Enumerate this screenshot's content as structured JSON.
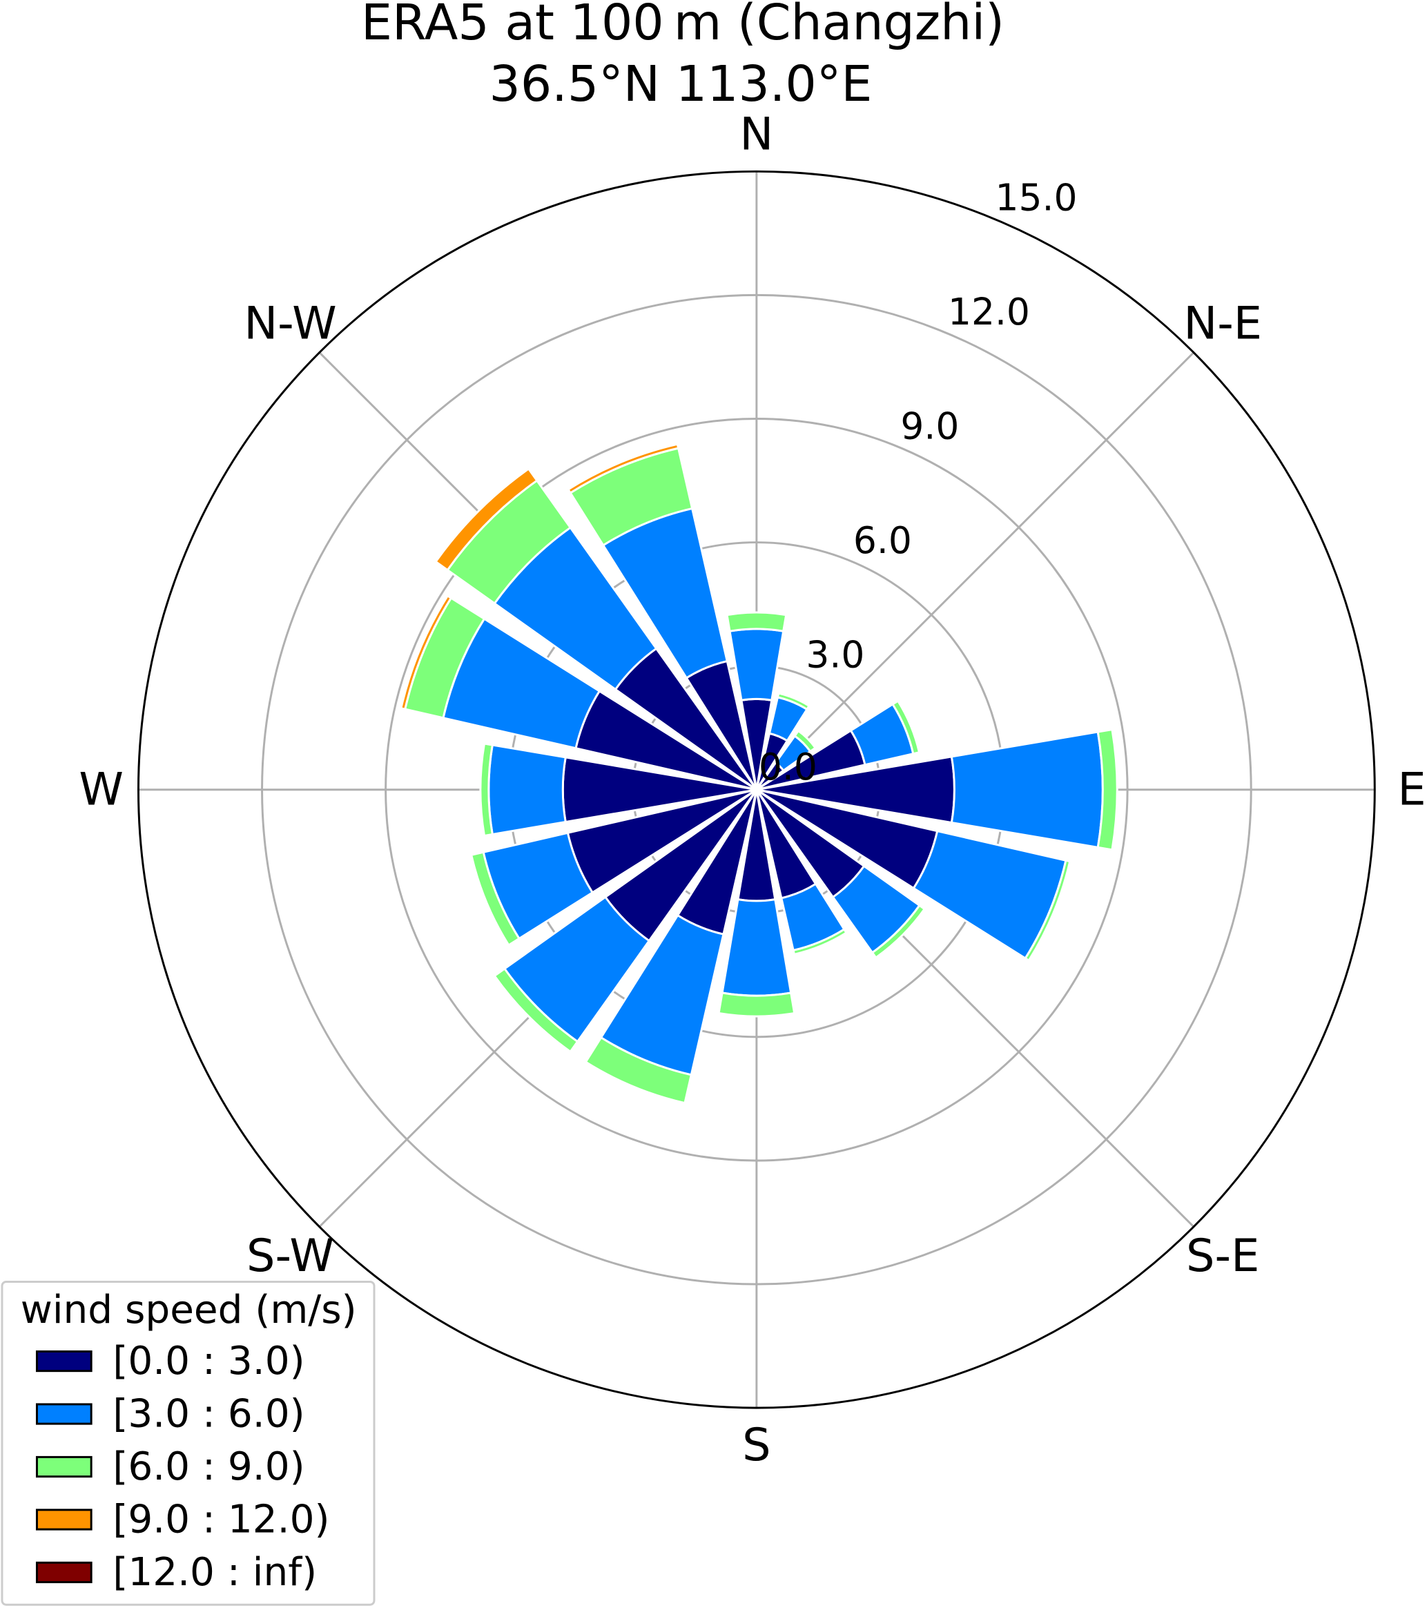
{
  "chart_data": {
    "type": "windrose",
    "title": "ERA5 at 100 m (Changzhi)",
    "subtitle": "36.5°N 113.0°E",
    "direction_labels": [
      "N",
      "N-E",
      "E",
      "S-E",
      "S",
      "S-W",
      "W",
      "N-W"
    ],
    "radial_ticks": [
      0.0,
      3.0,
      6.0,
      9.0,
      12.0,
      15.0
    ],
    "radial_tick_labels": [
      "0.0",
      "3.0",
      "6.0",
      "9.0",
      "12.0",
      "15.0"
    ],
    "rlim": [
      0,
      15
    ],
    "grid": true,
    "legend": {
      "title": "wind speed (m/s)",
      "placement": "lower-left",
      "entries": [
        "[0.0 : 3.0)",
        "[3.0 : 6.0)",
        "[6.0 : 9.0)",
        "[9.0 : 12.0)",
        "[12.0 : inf)"
      ]
    },
    "bin_colors": [
      "#00007f",
      "#0080ff",
      "#7dff7a",
      "#ff9400",
      "#7f0000"
    ],
    "directions_deg": [
      0,
      22.5,
      45,
      67.5,
      90,
      112.5,
      135,
      157.5,
      180,
      202.5,
      225,
      247.5,
      270,
      292.5,
      315,
      337.5
    ],
    "series": [
      {
        "name": "[0.0 : 3.0)",
        "values": [
          2.2,
          1.4,
          0.8,
          2.7,
          4.8,
          4.5,
          3.2,
          2.7,
          2.7,
          3.6,
          4.5,
          4.7,
          4.7,
          4.5,
          4.2,
          3.2
        ]
      },
      {
        "name": "[3.0 : 6.0)",
        "values": [
          1.7,
          0.9,
          0.8,
          1.2,
          3.6,
          3.2,
          1.65,
          1.3,
          2.3,
          3.5,
          3.0,
          2.1,
          1.8,
          3.3,
          3.6,
          3.8
        ]
      },
      {
        "name": "[6.0 : 9.0)",
        "values": [
          0.4,
          0.1,
          0.15,
          0.15,
          0.35,
          0.1,
          0.15,
          0.1,
          0.5,
          0.7,
          0.3,
          0.3,
          0.2,
          0.95,
          1.4,
          1.5
        ]
      },
      {
        "name": "[9.0 : 12.0)",
        "values": [
          0,
          0,
          0,
          0,
          0,
          0,
          0,
          0,
          0,
          0,
          0,
          0,
          0,
          0.1,
          0.35,
          0.1
        ]
      },
      {
        "name": "[12.0 : inf)",
        "values": [
          0,
          0,
          0,
          0,
          0,
          0,
          0,
          0,
          0,
          0,
          0,
          0,
          0,
          0,
          0,
          0
        ]
      }
    ]
  }
}
